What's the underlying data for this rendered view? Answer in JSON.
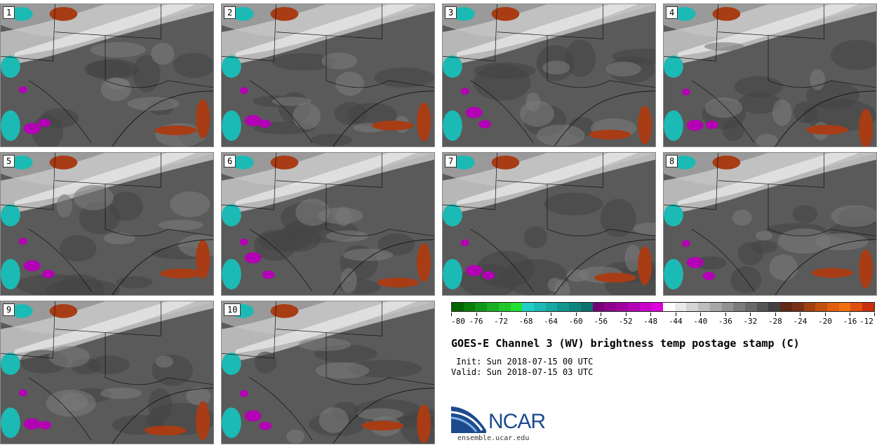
{
  "panels": [
    {
      "label": "1"
    },
    {
      "label": "2"
    },
    {
      "label": "3"
    },
    {
      "label": "4"
    },
    {
      "label": "5"
    },
    {
      "label": "6"
    },
    {
      "label": "7"
    },
    {
      "label": "8"
    },
    {
      "label": "9"
    },
    {
      "label": "10"
    }
  ],
  "colorbar": {
    "colors": [
      "#006400",
      "#0a7d0a",
      "#12961a",
      "#1aaf22",
      "#1ec82c",
      "#22e030",
      "#20d0c8",
      "#1cbab4",
      "#18a8a2",
      "#149690",
      "#10847e",
      "#0c726c",
      "#780078",
      "#8c008c",
      "#a000a0",
      "#b400b4",
      "#c800c8",
      "#dc00dc",
      "#ffffff",
      "#eaeaea",
      "#d4d4d4",
      "#bebebe",
      "#a8a8a8",
      "#929292",
      "#7c7c7c",
      "#686868",
      "#545454",
      "#404040",
      "#602818",
      "#783018",
      "#a04010",
      "#c05010",
      "#e06010",
      "#f07010",
      "#e05010",
      "#c83010"
    ],
    "tick_labels": [
      "-80",
      "-76",
      "-72",
      "-68",
      "-64",
      "-60",
      "-56",
      "-52",
      "-48",
      "-44",
      "-40",
      "-36",
      "-32",
      "-28",
      "-24",
      "-20",
      "-16",
      "-12"
    ]
  },
  "title": "GOES-E Channel 3 (WV) brightness temp postage stamp (C)",
  "init": " Init: Sun 2018-07-15 00 UTC",
  "valid": "Valid: Sun 2018-07-15 03 UTC",
  "logo": {
    "text": "NCAR",
    "website": "ensemble.ucar.edu"
  }
}
